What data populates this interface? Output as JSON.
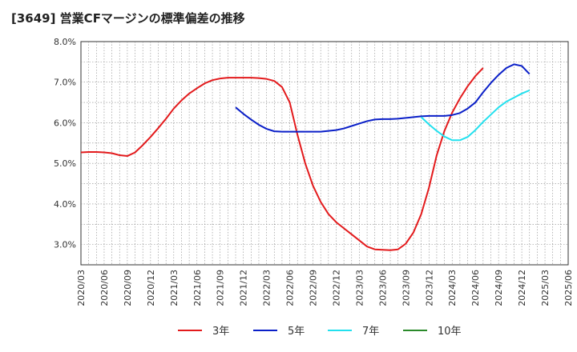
{
  "chart_data": {
    "type": "line",
    "title": "[3649]  営業CFマージンの標準偏差の推移",
    "xlabel": "",
    "ylabel": "",
    "ylim": [
      2.5,
      8.0
    ],
    "yticks": [
      "3.0%",
      "4.0%",
      "5.0%",
      "6.0%",
      "7.0%",
      "8.0%"
    ],
    "ytick_values": [
      3.0,
      4.0,
      5.0,
      6.0,
      7.0,
      8.0
    ],
    "xticks": [
      "2020/03",
      "2020/06",
      "2020/09",
      "2020/12",
      "2021/03",
      "2021/06",
      "2021/09",
      "2021/12",
      "2022/03",
      "2022/06",
      "2022/09",
      "2022/12",
      "2023/03",
      "2023/06",
      "2023/09",
      "2023/12",
      "2024/03",
      "2024/06",
      "2024/09",
      "2024/12",
      "2025/03",
      "2025/06"
    ],
    "grid": true,
    "legend_position": "bottom",
    "series": [
      {
        "name": "3年",
        "color": "#e31a1c",
        "start": "2020/03",
        "values": [
          5.27,
          5.28,
          5.28,
          5.27,
          5.25,
          5.2,
          5.18,
          5.27,
          5.45,
          5.65,
          5.87,
          6.1,
          6.35,
          6.55,
          6.72,
          6.85,
          6.97,
          7.05,
          7.09,
          7.11,
          7.11,
          7.11,
          7.11,
          7.1,
          7.08,
          7.03,
          6.88,
          6.5,
          5.7,
          5.0,
          4.45,
          4.05,
          3.75,
          3.55,
          3.4,
          3.25,
          3.1,
          2.95,
          2.88,
          2.87,
          2.86,
          2.88,
          3.02,
          3.3,
          3.75,
          4.4,
          5.2,
          5.8,
          6.25,
          6.6,
          6.9,
          7.15,
          7.35
        ]
      },
      {
        "name": "5年",
        "color": "#0a1fc8",
        "start": "2021/11",
        "values": [
          6.38,
          6.22,
          6.08,
          5.95,
          5.85,
          5.79,
          5.78,
          5.78,
          5.78,
          5.78,
          5.78,
          5.78,
          5.8,
          5.82,
          5.86,
          5.92,
          5.98,
          6.04,
          6.08,
          6.09,
          6.09,
          6.1,
          6.12,
          6.14,
          6.16,
          6.17,
          6.17,
          6.17,
          6.19,
          6.24,
          6.35,
          6.5,
          6.75,
          6.98,
          7.18,
          7.35,
          7.44,
          7.4,
          7.2
        ]
      },
      {
        "name": "7年",
        "color": "#22e0ee",
        "start": "2023/11",
        "values": [
          6.14,
          5.96,
          5.8,
          5.66,
          5.57,
          5.57,
          5.65,
          5.82,
          6.02,
          6.2,
          6.38,
          6.52,
          6.62,
          6.72,
          6.8
        ]
      },
      {
        "name": "10年",
        "color": "#2a8a2a",
        "start": "2020/03",
        "values": []
      }
    ]
  }
}
